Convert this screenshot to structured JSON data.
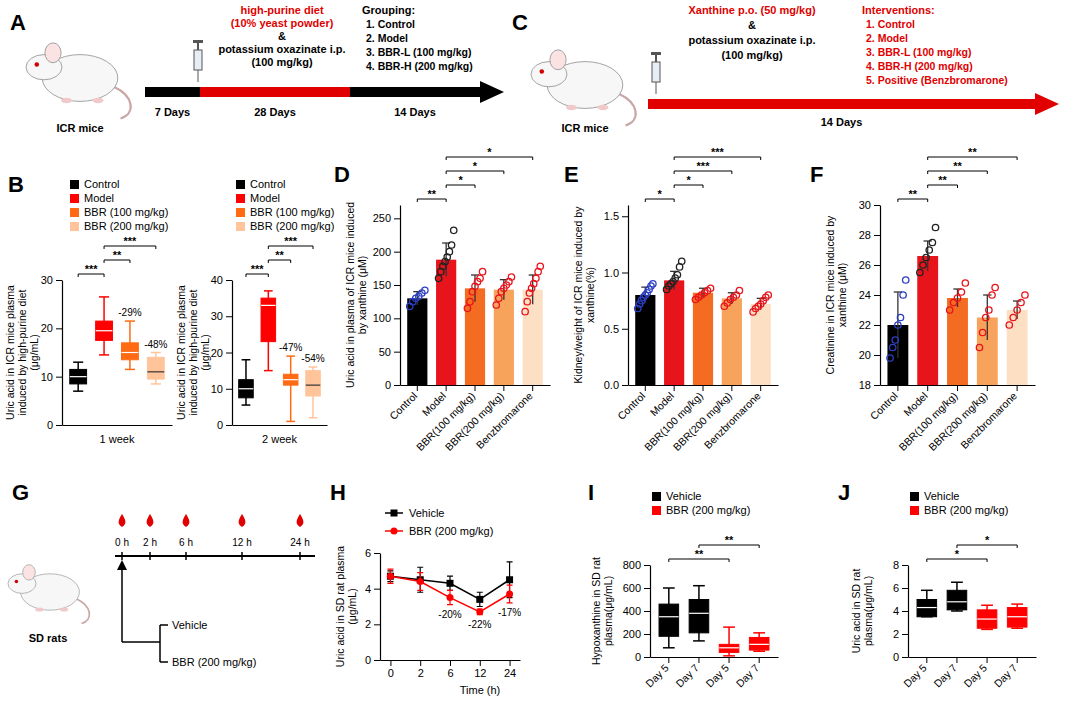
{
  "diagrams": [
    {
      "panel_label": "A",
      "animal": "ICR mice",
      "treatment_lines": [
        "high-purine diet",
        "(10% yeast powder)",
        "&",
        "potassium oxazinate i.p.",
        "(100 mg/kg)"
      ],
      "treatment_colors": [
        "#e00000",
        "#e00000",
        "#000000",
        "#000000",
        "#000000"
      ],
      "list_title": "Grouping:",
      "list_color": "#000000",
      "list_items": [
        "1. Control",
        "2. Model",
        "3. BBR-L (100 mg/kg)",
        "4. BBR-H (200 mg/kg)"
      ],
      "durations": [
        "7 Days",
        "28 Days",
        "14 Days"
      ]
    },
    {
      "panel_label": "C",
      "animal": "ICR mice",
      "treatment_lines": [
        "Xanthine p.o. (50 mg/kg)",
        "&",
        "potassium oxazinate i.p.",
        "(100 mg/kg)"
      ],
      "treatment_colors": [
        "#e00000",
        "#000000",
        "#000000",
        "#000000"
      ],
      "list_title": "Interventions:",
      "list_color": "#e00000",
      "list_items": [
        "1. Control",
        "2. Model",
        "3. BBR-L (100 mg/kg)",
        "4. BBR-H (200 mg/kg)",
        "5. Positive (Benzbromarone)"
      ],
      "durations": [
        "14 Days"
      ]
    },
    {
      "panel_label": "G",
      "animal": "SD rats",
      "time_points": [
        "0 h",
        "2 h",
        "6 h",
        "12 h",
        "24 h"
      ],
      "groups": [
        "Vehicle",
        "BBR (200 mg/kg)"
      ]
    }
  ],
  "chart_data": [
    {
      "type": "box",
      "panel_label": "B",
      "ylabel": "Uric acid in ICR mice plasma induced by high-purine diet (μg/mL)",
      "xlabel": "1 week",
      "categories": [
        null,
        null,
        null,
        null
      ],
      "tick_labels": "y",
      "colors": [
        "#000000",
        "#ff0000",
        "#ff6a13",
        "#ffc49a"
      ],
      "legend": "top",
      "legend_entries": [
        {
          "name": "Control",
          "color": "#000000"
        },
        {
          "name": "Model",
          "color": "#ff0000"
        },
        {
          "name": "BBR (100 mg/kg)",
          "color": "#ff6a13"
        },
        {
          "name": "BBR (200 mg/kg)",
          "color": "#ffc49a"
        }
      ],
      "ylim": [
        0,
        30
      ],
      "yticks": [
        0,
        10,
        20,
        30
      ],
      "boxes": [
        {
          "min": 7,
          "q1": 8.5,
          "median": 10,
          "q3": 11.5,
          "max": 13
        },
        {
          "min": 14.5,
          "q1": 17.5,
          "median": 19.5,
          "q3": 21.5,
          "max": 26.5
        },
        {
          "min": 11.5,
          "q1": 13.5,
          "median": 15,
          "q3": 17,
          "max": 21.5
        },
        {
          "min": 8.5,
          "q1": 9.5,
          "median": 11,
          "q3": 14,
          "max": 15
        }
      ],
      "change_labels": [
        null,
        null,
        "-29%",
        "-48%"
      ],
      "significance": [
        {
          "groups": [
            0,
            1
          ],
          "label": "***"
        },
        {
          "groups": [
            1,
            2
          ],
          "label": "**"
        },
        {
          "groups": [
            1,
            3
          ],
          "label": "***"
        }
      ]
    },
    {
      "type": "box",
      "ylabel": "Uric acid in ICR mice plasma induced by high-purine diet (μg/mL)",
      "xlabel": "2 week",
      "categories": [
        null,
        null,
        null,
        null
      ],
      "tick_labels": "y",
      "colors": [
        "#000000",
        "#ff0000",
        "#ff6a13",
        "#ffc49a"
      ],
      "legend": "top",
      "legend_entries": [
        {
          "name": "Control",
          "color": "#000000"
        },
        {
          "name": "Model",
          "color": "#ff0000"
        },
        {
          "name": "BBR (100 mg/kg)",
          "color": "#ff6a13"
        },
        {
          "name": "BBR (200 mg/kg)",
          "color": "#ffc49a"
        }
      ],
      "ylim": [
        0,
        40
      ],
      "yticks": [
        0,
        10,
        20,
        30,
        40
      ],
      "boxes": [
        {
          "min": 5.5,
          "q1": 7.5,
          "median": 10,
          "q3": 12.5,
          "max": 18
        },
        {
          "min": 15,
          "q1": 23,
          "median": 33,
          "q3": 35,
          "max": 37
        },
        {
          "min": 1,
          "q1": 11,
          "median": 12.5,
          "q3": 14,
          "max": 19
        },
        {
          "min": 2,
          "q1": 8,
          "median": 11,
          "q3": 15,
          "max": 16
        }
      ],
      "change_labels": [
        null,
        null,
        "-47%",
        "-54%"
      ],
      "significance": [
        {
          "groups": [
            0,
            1
          ],
          "label": "***"
        },
        {
          "groups": [
            1,
            2
          ],
          "label": "**"
        },
        {
          "groups": [
            1,
            3
          ],
          "label": "***"
        }
      ]
    },
    {
      "type": "bar",
      "panel_label": "D",
      "ylabel": "Uric acid in plasma of ICR mice induced by xanthine (μM)",
      "categories": [
        "Control",
        "Model",
        "BBR(100 mg/kg)",
        "BBR(200 mg/kg)",
        "Benzbromarone"
      ],
      "colors": [
        "#000000",
        "#e8141c",
        "#f36c21",
        "#f7a35c",
        "#fde0c4"
      ],
      "point_colors": [
        "#2b3fc4",
        "#222222",
        "#e8141c",
        "#e8141c",
        "#e8141c"
      ],
      "values": [
        130,
        188,
        145,
        143,
        143
      ],
      "errors": [
        10,
        25,
        20,
        15,
        22
      ],
      "points": [
        [
          118,
          125,
          130,
          133,
          138,
          142
        ],
        [
          160,
          170,
          178,
          185,
          192,
          200,
          210,
          232
        ],
        [
          115,
          125,
          140,
          148,
          155,
          160,
          170
        ],
        [
          120,
          130,
          140,
          145,
          150,
          155,
          162
        ],
        [
          110,
          125,
          138,
          145,
          152,
          160,
          170,
          178
        ]
      ],
      "ylim": [
        0,
        270
      ],
      "yticks": [
        0,
        50,
        100,
        150,
        200,
        250
      ],
      "significance": [
        {
          "groups": [
            0,
            1
          ],
          "label": "**"
        },
        {
          "groups": [
            1,
            2
          ],
          "label": "*"
        },
        {
          "groups": [
            1,
            3
          ],
          "label": "*"
        },
        {
          "groups": [
            1,
            4
          ],
          "label": "*"
        }
      ]
    },
    {
      "type": "bar",
      "panel_label": "E",
      "ylabel": "Kidney/weight of ICR mice induced by xanthine(%)",
      "categories": [
        "Control",
        "Model",
        "BBR(100 mg/kg)",
        "BBR(200 mg/kg)",
        "Benzbromarone"
      ],
      "colors": [
        "#000000",
        "#e8141c",
        "#f36c21",
        "#f7a35c",
        "#fde0c4"
      ],
      "point_colors": [
        "#2b3fc4",
        "#222222",
        "#e8141c",
        "#e8141c",
        "#e8141c"
      ],
      "values": [
        0.8,
        0.93,
        0.82,
        0.77,
        0.72
      ],
      "errors": [
        0.07,
        0.08,
        0.04,
        0.05,
        0.05
      ],
      "points": [
        [
          0.68,
          0.72,
          0.75,
          0.78,
          0.8,
          0.82,
          0.85,
          0.88,
          0.9
        ],
        [
          0.85,
          0.88,
          0.9,
          0.92,
          0.95,
          0.98,
          1.05,
          1.1
        ],
        [
          0.76,
          0.78,
          0.8,
          0.82,
          0.84,
          0.86
        ],
        [
          0.7,
          0.73,
          0.76,
          0.78,
          0.8,
          0.84
        ],
        [
          0.65,
          0.68,
          0.7,
          0.72,
          0.75,
          0.78,
          0.8
        ]
      ],
      "ylim": [
        0,
        1.6
      ],
      "yticks": [
        {
          "value": 0,
          "label": "0.0"
        },
        0.5,
        {
          "value": 1,
          "label": "1.0"
        },
        1.5
      ],
      "significance": [
        {
          "groups": [
            0,
            1
          ],
          "label": "*"
        },
        {
          "groups": [
            1,
            2
          ],
          "label": "*"
        },
        {
          "groups": [
            1,
            3
          ],
          "label": "***"
        },
        {
          "groups": [
            1,
            4
          ],
          "label": "***"
        }
      ]
    },
    {
      "type": "bar",
      "panel_label": "F",
      "ylabel": "Creatinine in ICR mice induced by xanthine (μM)",
      "categories": [
        "Control",
        "Model",
        "BBR(100 mg/kg)",
        "BBR(200 mg/kg)",
        "Benzbromarone"
      ],
      "colors": [
        "#000000",
        "#e8141c",
        "#f36c21",
        "#f7a35c",
        "#fde0c4"
      ],
      "point_colors": [
        "#2b3fc4",
        "#222222",
        "#e8141c",
        "#e8141c",
        "#e8141c"
      ],
      "values": [
        22.0,
        26.6,
        23.8,
        22.5,
        23.0
      ],
      "errors": [
        2.2,
        1.0,
        0.6,
        1.5,
        0.6
      ],
      "points": [
        [
          19.8,
          20.5,
          21.0,
          22.0,
          22.5,
          24.0,
          25.0
        ],
        [
          25.5,
          26.0,
          26.5,
          27.0,
          27.5,
          28.5
        ],
        [
          23.0,
          23.5,
          23.8,
          24.2,
          24.8
        ],
        [
          20.5,
          21.5,
          22.5,
          23.0,
          24.0,
          24.5
        ],
        [
          22.0,
          22.5,
          23.0,
          23.5,
          24.0
        ]
      ],
      "ylim": [
        18,
        30
      ],
      "yticks": [
        18,
        20,
        22,
        24,
        26,
        28,
        30
      ],
      "significance": [
        {
          "groups": [
            0,
            1
          ],
          "label": "**"
        },
        {
          "groups": [
            1,
            2
          ],
          "label": "**"
        },
        {
          "groups": [
            1,
            3
          ],
          "label": "**"
        },
        {
          "groups": [
            1,
            4
          ],
          "label": "**"
        }
      ]
    },
    {
      "type": "line",
      "panel_label": "H",
      "ylabel": "Uric acid in SD rat plasma (μg/mL)",
      "xlabel": "Time (h)",
      "categories": [
        "0",
        "2",
        "6",
        "12",
        "24"
      ],
      "ylim": [
        0,
        6
      ],
      "yticks": [
        0,
        2,
        4,
        6
      ],
      "legend": "top",
      "series": [
        {
          "name": "Vehicle",
          "color": "#000000",
          "marker": "square",
          "values": [
            4.7,
            4.5,
            4.3,
            3.4,
            4.5
          ],
          "errors": [
            0.3,
            0.7,
            0.4,
            0.4,
            1.0
          ]
        },
        {
          "name": "BBR (200 mg/kg)",
          "color": "#ff0000",
          "marker": "circle",
          "values": [
            4.7,
            4.4,
            3.5,
            2.7,
            3.7
          ],
          "errors": [
            0.4,
            0.5,
            0.4,
            0.15,
            0.5
          ]
        }
      ],
      "change_labels": [
        null,
        null,
        "-20%",
        "-22%",
        "-17%"
      ]
    },
    {
      "type": "box",
      "panel_label": "I",
      "ylabel": "Hypoxanthine in SD rat plasma(μg/mL)",
      "categories": [
        "Day 5",
        "Day 7",
        "Day 5",
        "Day 7"
      ],
      "colors": [
        "#000000",
        "#000000",
        "#ff0000",
        "#ff0000"
      ],
      "legend": "top",
      "legend_entries": [
        {
          "name": "Vehicle",
          "color": "#000000"
        },
        {
          "name": "BBR (200 mg/kg)",
          "color": "#ff0000"
        }
      ],
      "ylim": [
        0,
        800
      ],
      "yticks": [
        0,
        200,
        400,
        600,
        800
      ],
      "boxes": [
        {
          "min": 80,
          "q1": 180,
          "median": 350,
          "q3": 460,
          "max": 600
        },
        {
          "min": 140,
          "q1": 210,
          "median": 380,
          "q3": 500,
          "max": 620
        },
        {
          "min": 10,
          "q1": 40,
          "median": 80,
          "q3": 110,
          "max": 260
        },
        {
          "min": 50,
          "q1": 60,
          "median": 110,
          "q3": 170,
          "max": 210
        }
      ],
      "significance": [
        {
          "groups": [
            0,
            2
          ],
          "label": "**"
        },
        {
          "groups": [
            1,
            3
          ],
          "label": "**"
        }
      ]
    },
    {
      "type": "box",
      "panel_label": "J",
      "ylabel": "Uric acid in SD rat plasma(μg/mL)",
      "categories": [
        "Day 5",
        "Day 7",
        "Day 5",
        "Day 7"
      ],
      "colors": [
        "#000000",
        "#000000",
        "#ff0000",
        "#ff0000"
      ],
      "legend": "top",
      "legend_entries": [
        {
          "name": "Vehicle",
          "color": "#000000"
        },
        {
          "name": "BBR (200 mg/kg)",
          "color": "#ff0000"
        }
      ],
      "ylim": [
        0,
        8
      ],
      "yticks": [
        0,
        2,
        4,
        6,
        8
      ],
      "boxes": [
        {
          "min": 3.5,
          "q1": 3.5,
          "median": 4.3,
          "q3": 5.0,
          "max": 5.8
        },
        {
          "min": 4.0,
          "q1": 4.1,
          "median": 4.8,
          "q3": 5.8,
          "max": 6.5
        },
        {
          "min": 2.4,
          "q1": 2.5,
          "median": 3.3,
          "q3": 4.1,
          "max": 4.5
        },
        {
          "min": 2.5,
          "q1": 2.6,
          "median": 3.5,
          "q3": 4.3,
          "max": 4.6
        }
      ],
      "significance": [
        {
          "groups": [
            0,
            2
          ],
          "label": "*"
        },
        {
          "groups": [
            1,
            3
          ],
          "label": "*"
        }
      ]
    }
  ]
}
